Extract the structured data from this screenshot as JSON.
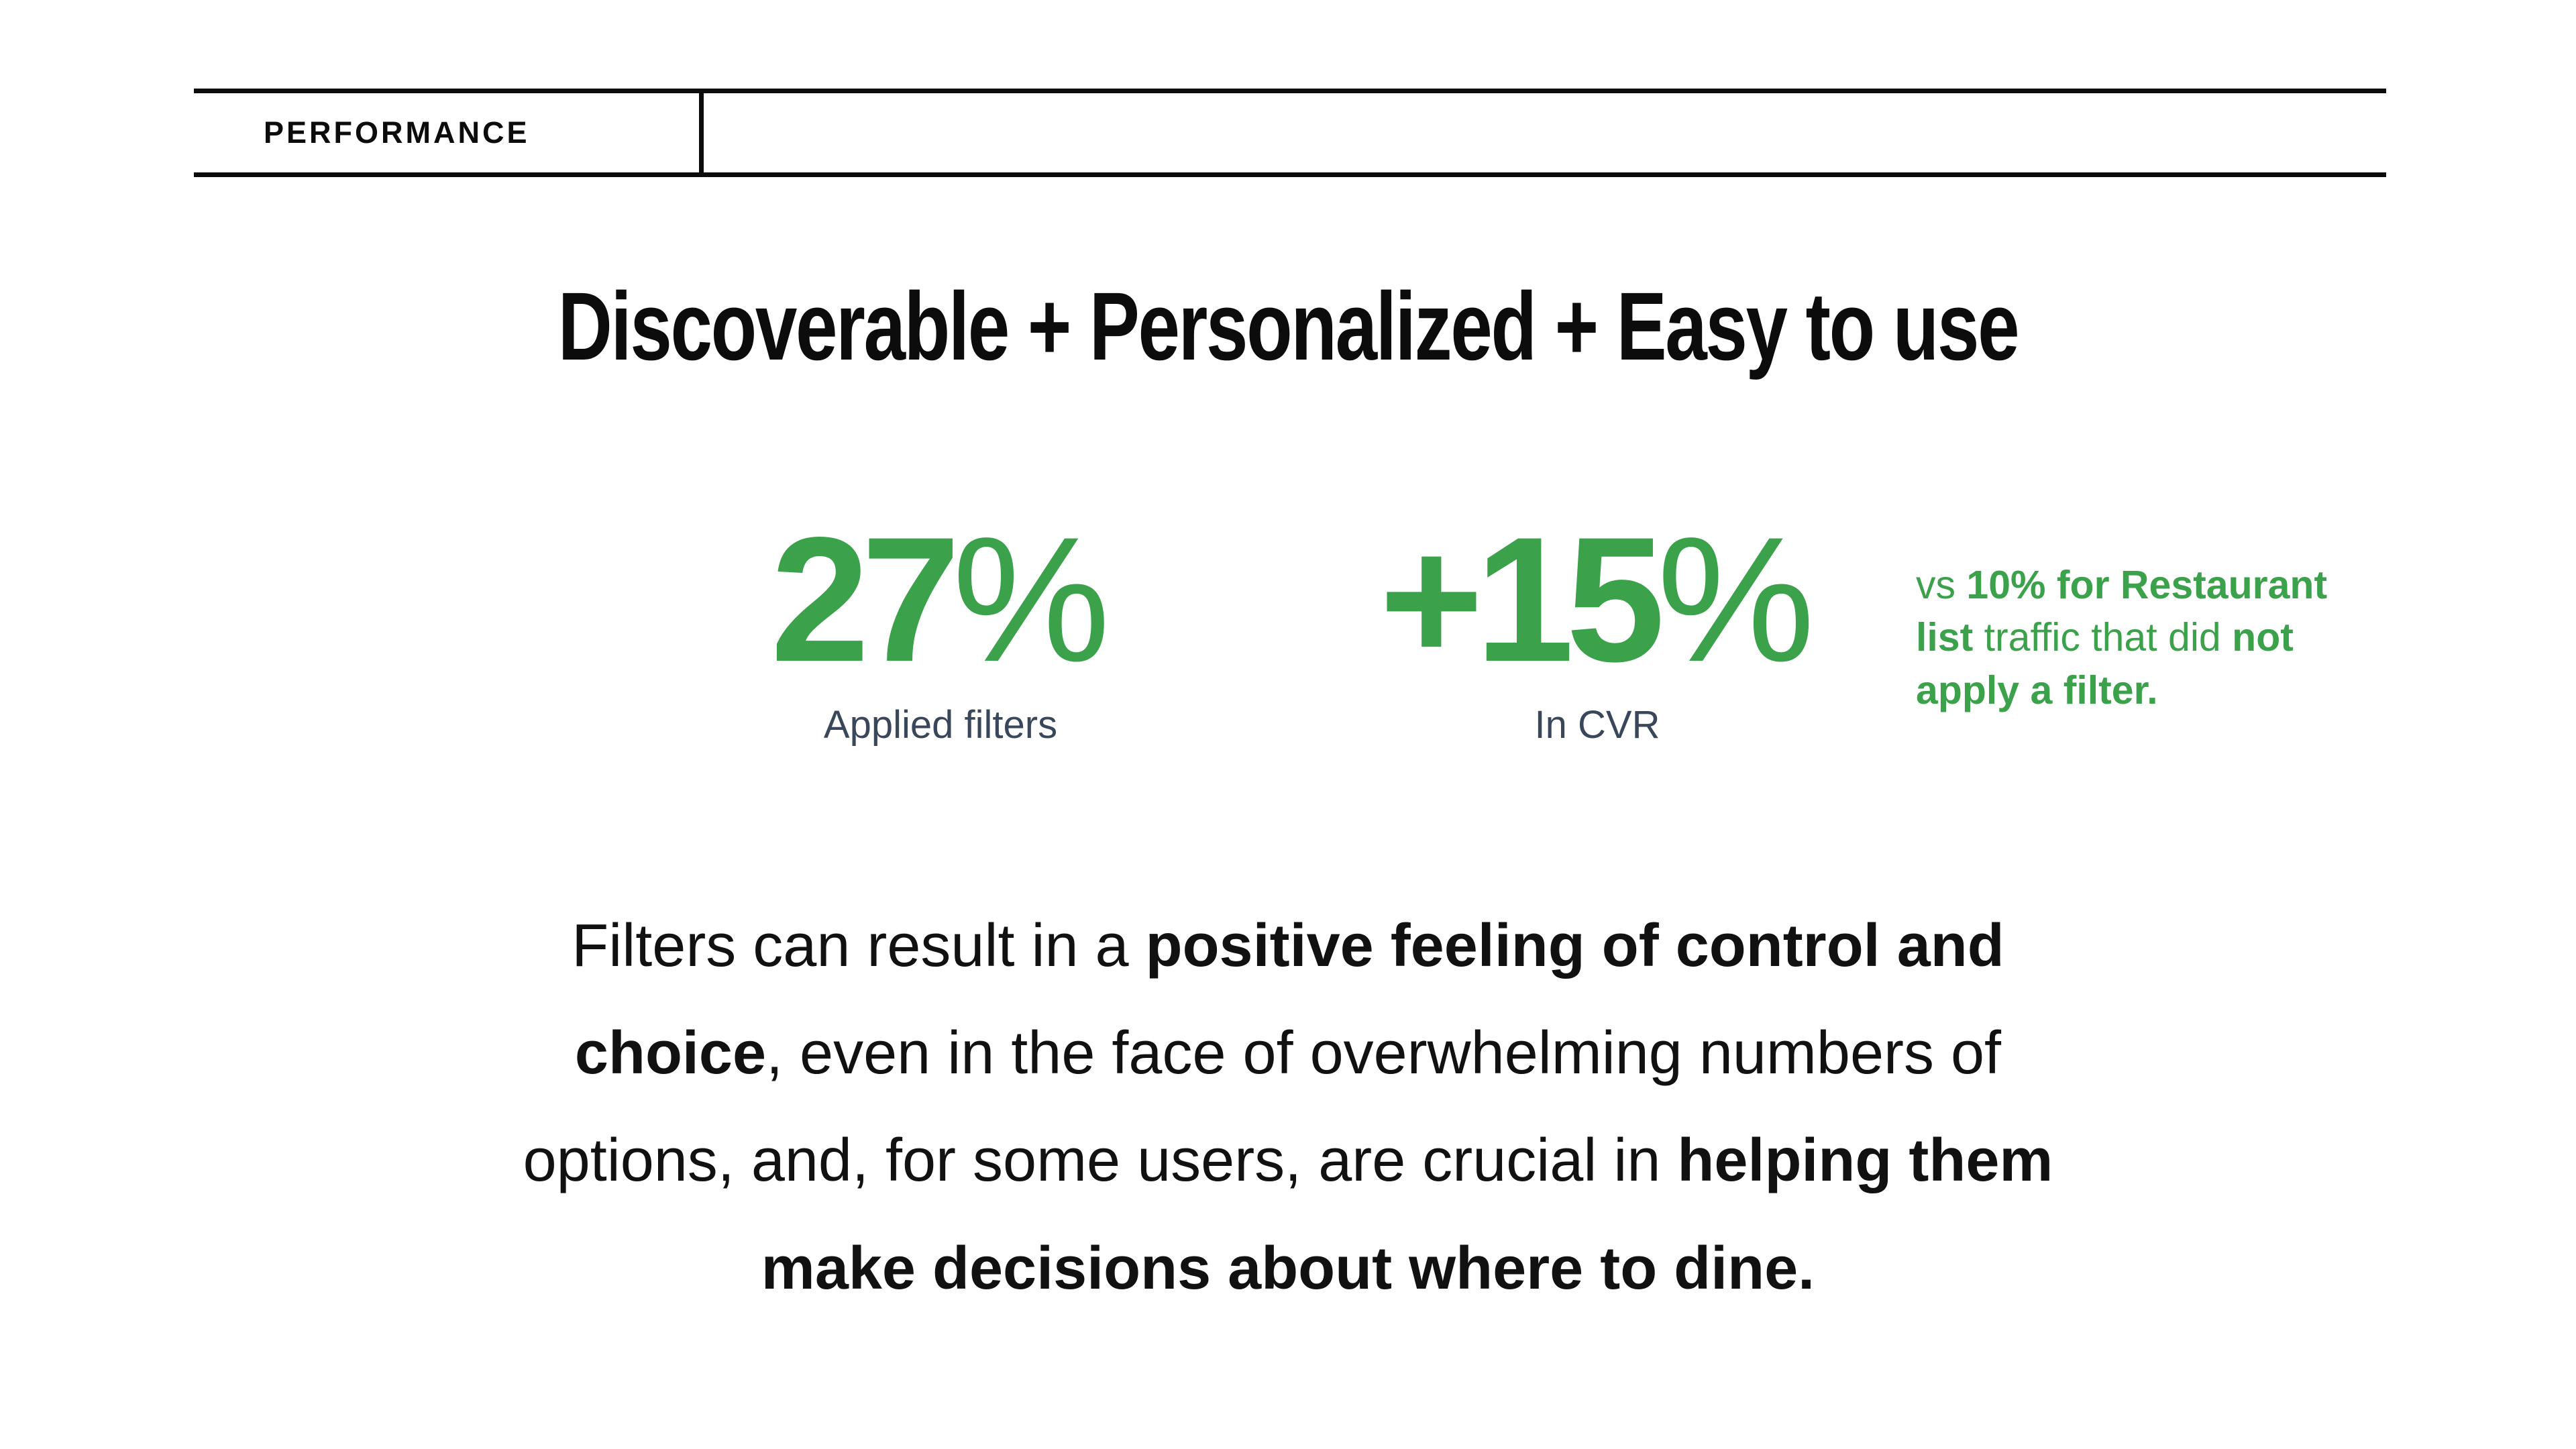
{
  "theme": {
    "green": "#3BA14A",
    "slate": "#3A4659",
    "ink": "#0C0C0C",
    "background": "#FFFFFF"
  },
  "header": {
    "label": "PERFORMANCE"
  },
  "title": "Discoverable + Personalized + Easy to use",
  "stats": [
    {
      "value": "27",
      "suffix": "%",
      "label": "Applied filters"
    },
    {
      "value": "+15",
      "suffix": "%",
      "label": "In CVR"
    }
  ],
  "note": {
    "segments": [
      {
        "text": "vs ",
        "bold": false
      },
      {
        "text": "10% for Restaurant\nlist",
        "bold": true
      },
      {
        "text": " traffic that did ",
        "bold": false
      },
      {
        "text": "not\napply a filter.",
        "bold": true
      }
    ]
  },
  "paragraph": {
    "segments": [
      {
        "text": "Filters can result in a ",
        "bold": false
      },
      {
        "text": "positive feeling of control and\nchoice",
        "bold": true
      },
      {
        "text": ", even in the face of overwhelming numbers of\noptions, and, for some users, are crucial in ",
        "bold": false
      },
      {
        "text": "helping them\nmake decisions about where to dine.",
        "bold": true
      }
    ]
  }
}
